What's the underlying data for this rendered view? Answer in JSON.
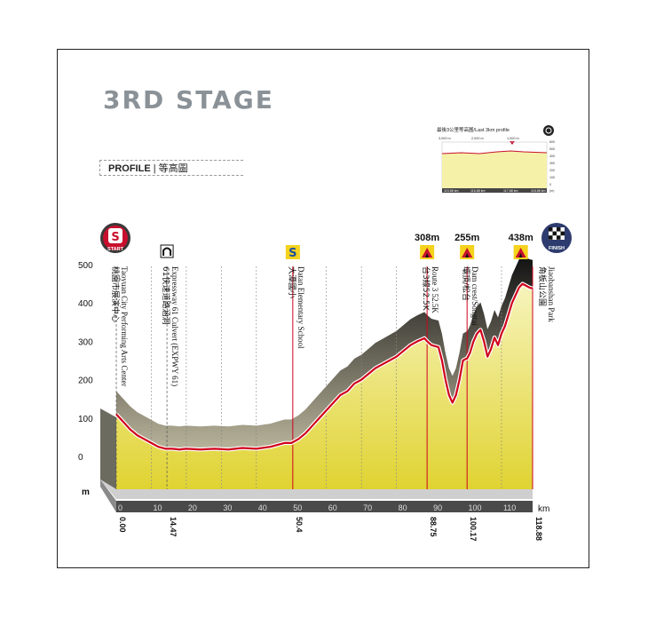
{
  "header": {
    "title": "3RD STAGE"
  },
  "profile_tab": {
    "label_en": "PROFILE",
    "separator": "|",
    "label_zh": "等高圖"
  },
  "inset": {
    "title": "最後3公里等高圖/Last 3km profile",
    "top_ticks": [
      "3,000 m",
      "2,000 m",
      "1,000 m"
    ],
    "y_ticks": [
      "600",
      "500",
      "400",
      "300",
      "200",
      "100",
      "0",
      "(m)"
    ],
    "x_ticks": [
      "115.88 km",
      "116.88 km",
      "117.88 km",
      "118.88 km"
    ]
  },
  "markers": {
    "start": "START",
    "finish": "FINISH",
    "kom1_alt": "308m",
    "kom2_alt": "255m",
    "kom3_alt": "438m"
  },
  "colors": {
    "fill_top": "#f3ef9a",
    "fill_bottom": "#e2d63a",
    "line_red": "#d0021b",
    "dark_shadow": "#1a1a1a",
    "marker_red": "#c8102e"
  },
  "chart_data": {
    "type": "area",
    "title": "",
    "xlabel": "km",
    "ylabel": "m",
    "y_ticks": [
      "500",
      "400",
      "300",
      "200",
      "100",
      "0",
      "m"
    ],
    "x_ticks": [
      "0",
      "10",
      "20",
      "30",
      "40",
      "50",
      "60",
      "70",
      "80",
      "90",
      "100",
      "110",
      "km"
    ],
    "xlim": [
      0,
      118.88
    ],
    "ylim": [
      -100,
      500
    ],
    "grid": false,
    "series": [
      {
        "x": [
          0,
          2,
          4,
          6,
          8,
          10,
          12,
          14,
          16,
          18,
          20,
          24,
          28,
          32,
          36,
          40,
          44,
          46,
          48,
          50,
          52,
          54,
          56,
          58,
          60,
          62,
          64,
          66,
          68,
          70,
          72,
          74,
          76,
          78,
          80,
          82,
          84,
          86,
          88,
          88.75,
          90,
          92,
          93,
          94,
          95,
          96,
          97,
          98,
          99,
          100,
          100.17,
          101,
          102,
          103,
          104,
          105,
          106,
          107,
          108,
          109,
          110,
          111,
          112,
          113,
          114,
          115,
          116,
          117,
          118,
          118.88
        ],
        "y": [
          110,
          90,
          70,
          55,
          45,
          35,
          25,
          20,
          20,
          18,
          20,
          18,
          20,
          18,
          22,
          20,
          25,
          30,
          35,
          35,
          45,
          60,
          80,
          100,
          120,
          140,
          160,
          170,
          190,
          200,
          215,
          230,
          240,
          250,
          260,
          275,
          290,
          300,
          308,
          300,
          290,
          285,
          250,
          200,
          160,
          140,
          160,
          200,
          250,
          255,
          255,
          270,
          300,
          320,
          330,
          300,
          260,
          280,
          310,
          290,
          320,
          340,
          370,
          400,
          420,
          440,
          450,
          445,
          440,
          438
        ]
      }
    ],
    "annotations": [
      {
        "x": 0.0,
        "km_label": "0.00",
        "text_en": "Taoyuan City Performing Arts Center",
        "text_zh": "桃園市展演中心",
        "icon": "start-icon"
      },
      {
        "x": 14.47,
        "km_label": "14.47",
        "text_en": "Expressway 61 Culvert (EXPWY 61)",
        "text_zh": "61快速道路涵洞",
        "icon": "tunnel-icon"
      },
      {
        "x": 50.4,
        "km_label": "50.4",
        "text_en": "Datan Elementary School",
        "text_zh": "大潭國小",
        "icon": "sprint-icon"
      },
      {
        "x": 88.75,
        "km_label": "88.75",
        "text_en": "Route 3 52.5K",
        "text_zh": "台3線52.5K",
        "icon": "kom-icon"
      },
      {
        "x": 100.17,
        "km_label": "100.17",
        "text_en": "Dam crest/Songtai",
        "text_zh": "壩頂/松台",
        "icon": "kom-icon"
      },
      {
        "x": 118.88,
        "km_label": "118.88",
        "text_en": "Jiaobanshan Park",
        "text_zh": "角板山公園",
        "icon": "finish-icon"
      }
    ]
  }
}
